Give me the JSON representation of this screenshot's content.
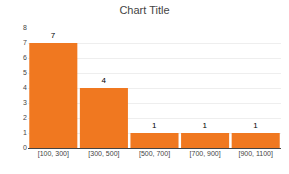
{
  "chart_data": {
    "type": "bar",
    "title": "Chart Title",
    "categories": [
      "[100, 300]",
      "[300, 500]",
      "[500, 700]",
      "[700, 900]",
      "[900, 1100]"
    ],
    "values": [
      7,
      4,
      1,
      1,
      1
    ],
    "color": "#F07820",
    "ylim": [
      0,
      8
    ],
    "yticks": [
      0,
      1,
      2,
      3,
      4,
      5,
      6,
      7,
      8
    ],
    "grid": true,
    "data_labels": true
  }
}
